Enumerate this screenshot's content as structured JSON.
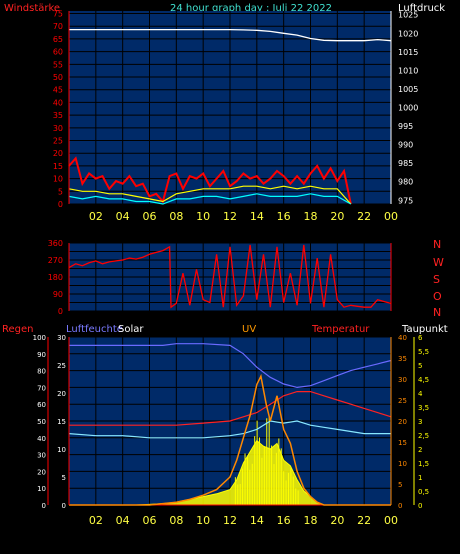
{
  "header": {
    "left_label": "Windstärke",
    "title": "24 hour graph day : Juli 22 2022",
    "right_label": "Luftdruck"
  },
  "direction_labels": [
    "N",
    "W",
    "S",
    "O",
    "N"
  ],
  "bottom_labels": {
    "regen": "Regen",
    "luftfeuchte": "Luftfeuchte",
    "solar": "Solar",
    "uv": "UV",
    "temperatur": "Temperatur",
    "taupunkt": "Taupunkt"
  },
  "colors": {
    "panel_bg": "#002a68",
    "grid": "#000000",
    "axis_red": "#ff0000",
    "axis_yellow": "#ffff00",
    "hours_yellow": "#ffff44",
    "pressure_line": "#ffffff",
    "wind_gust": "#ff0000",
    "wind_avg": "#ffff00",
    "wind_speed": "#00ffff",
    "humidity": "#6a6aff",
    "solar": "#ffff00",
    "uv": "#ff8800",
    "temperature": "#ff2222",
    "dewpoint": "#88e8ff",
    "rain": "#ff0000"
  },
  "chart_data": [
    {
      "type": "line",
      "name": "wind-pressure",
      "x_ticks": [
        "02",
        "04",
        "06",
        "08",
        "10",
        "12",
        "14",
        "16",
        "18",
        "20",
        "22",
        "00"
      ],
      "wind_ticks": [
        0,
        5,
        10,
        15,
        20,
        25,
        30,
        35,
        40,
        45,
        50,
        55,
        60,
        65,
        70,
        75
      ],
      "pressure_ticks": [
        975,
        980,
        985,
        990,
        995,
        1000,
        1005,
        1010,
        1015,
        1020,
        1025
      ],
      "wind_ylim": [
        0,
        76
      ],
      "pressure_ylim": [
        974,
        1026
      ],
      "pressure_hpa": {
        "x": [
          0,
          2,
          4,
          6,
          8,
          10,
          12,
          13,
          14,
          15,
          16,
          17,
          18,
          19,
          20,
          21,
          22,
          23,
          24
        ],
        "y": [
          1021.0,
          1021.0,
          1021.0,
          1021.0,
          1021.0,
          1021.0,
          1021.0,
          1020.9,
          1020.8,
          1020.5,
          1020.0,
          1019.5,
          1018.6,
          1018.1,
          1018.0,
          1018.0,
          1018.0,
          1018.3,
          1018.0
        ]
      },
      "wind_gust_kmh": {
        "x": [
          0,
          0.5,
          1,
          1.5,
          2,
          2.5,
          3,
          3.5,
          4,
          4.5,
          5,
          5.5,
          6,
          6.5,
          7,
          7.5,
          8,
          8.5,
          9,
          9.5,
          10,
          10.5,
          11,
          11.5,
          12,
          12.5,
          13,
          13.5,
          14,
          14.5,
          15,
          15.5,
          16,
          16.5,
          17,
          17.5,
          18,
          18.5,
          19,
          19.5,
          20,
          20.5,
          21
        ],
        "y": [
          15,
          18,
          8,
          12,
          10,
          11,
          6,
          9,
          8,
          11,
          7,
          8,
          3,
          4,
          1,
          11,
          12,
          6,
          11,
          10,
          12,
          7,
          10,
          13,
          7,
          9,
          12,
          10,
          11,
          8,
          10,
          13,
          11,
          8,
          11,
          8,
          12,
          15,
          10,
          14,
          9,
          13,
          0
        ]
      },
      "wind_avg_kmh": {
        "x": [
          0,
          1,
          2,
          3,
          4,
          5,
          6,
          7,
          8,
          9,
          10,
          11,
          12,
          13,
          14,
          15,
          16,
          17,
          18,
          19,
          20,
          21
        ],
        "y": [
          6,
          5,
          5,
          4,
          4,
          3,
          2,
          1,
          4,
          5,
          6,
          6,
          6,
          7,
          7,
          6,
          7,
          6,
          7,
          6,
          6,
          0
        ]
      },
      "wind_speed_kmh": {
        "x": [
          0,
          1,
          2,
          3,
          4,
          5,
          6,
          7,
          8,
          9,
          10,
          11,
          12,
          13,
          14,
          15,
          16,
          17,
          18,
          19,
          20,
          21
        ],
        "y": [
          3,
          2,
          3,
          2,
          2,
          1,
          1,
          0,
          2,
          2,
          3,
          3,
          2,
          3,
          4,
          3,
          3,
          3,
          4,
          3,
          3,
          0
        ]
      }
    },
    {
      "type": "line",
      "name": "wind-direction",
      "x_ticks": [
        "02",
        "04",
        "06",
        "08",
        "10",
        "12",
        "14",
        "16",
        "18",
        "20",
        "22",
        "00"
      ],
      "y_ticks": [
        0,
        90,
        180,
        270,
        360
      ],
      "y_minor_ticks": [
        45,
        135,
        225,
        315
      ],
      "ylim": [
        0,
        360
      ],
      "direction_deg": {
        "x": [
          0,
          0.5,
          1,
          1.5,
          2,
          2.5,
          3,
          3.5,
          4,
          4.5,
          5,
          5.5,
          6,
          6.5,
          7,
          7.5,
          7.6,
          8,
          8.5,
          9,
          9.5,
          10,
          10.5,
          11,
          11.5,
          12,
          12.5,
          13,
          13.5,
          14,
          14.5,
          15,
          15.5,
          16,
          16.5,
          17,
          17.5,
          18,
          18.5,
          19,
          19.5,
          20,
          20.5,
          21,
          21.5,
          22,
          22.5,
          23,
          23.5,
          24
        ],
        "y": [
          230,
          250,
          240,
          255,
          265,
          250,
          260,
          265,
          270,
          280,
          275,
          285,
          300,
          310,
          320,
          340,
          20,
          40,
          200,
          30,
          220,
          60,
          45,
          300,
          20,
          340,
          30,
          80,
          350,
          60,
          300,
          20,
          340,
          45,
          200,
          30,
          350,
          40,
          280,
          20,
          300,
          60,
          20,
          30,
          25,
          20,
          20,
          60,
          50,
          40
        ]
      }
    },
    {
      "type": "line",
      "name": "solar-uv-temperature",
      "x_ticks": [
        "02",
        "04",
        "06",
        "08",
        "10",
        "12",
        "14",
        "16",
        "18",
        "20",
        "22",
        "00"
      ],
      "regen_ticks": [
        0,
        10,
        20,
        30,
        40,
        50,
        60,
        70,
        80,
        90,
        100
      ],
      "luftfeuchte_ticks": [
        0,
        5,
        10,
        15,
        20,
        25,
        30
      ],
      "temp_ticks": [
        0,
        5,
        10,
        15,
        20,
        25,
        30,
        35,
        40
      ],
      "uv_ticks": [
        0,
        0.5,
        1,
        1.5,
        2,
        2.5,
        3,
        3.5,
        4,
        4.5,
        5,
        5.5,
        6
      ],
      "uv_tick_labels": [
        "0",
        "0,5",
        "1",
        "1,5",
        "2",
        "2,5",
        "3",
        "3,5",
        "4",
        "4,5",
        "5",
        "5,5",
        "6"
      ],
      "humidity_pct": {
        "x": [
          0,
          2,
          4,
          6,
          7,
          8,
          10,
          12,
          13,
          14,
          15,
          16,
          17,
          18,
          19,
          20,
          21,
          22,
          23,
          24
        ],
        "y": [
          95,
          95,
          95,
          95,
          95,
          96,
          96,
          95,
          90,
          82,
          76,
          72,
          70,
          71,
          74,
          77,
          80,
          82,
          84,
          86
        ]
      },
      "temperature_c": {
        "x": [
          0,
          2,
          4,
          6,
          8,
          10,
          12,
          13,
          14,
          15,
          16,
          17,
          18,
          19,
          20,
          21,
          22,
          23,
          24
        ],
        "y": [
          19,
          19,
          19,
          19,
          19,
          19.5,
          20,
          21,
          22,
          24,
          26,
          27,
          27,
          26,
          25,
          24,
          23,
          22,
          21
        ]
      },
      "dewpoint_c": {
        "x": [
          0,
          2,
          4,
          6,
          8,
          10,
          12,
          13,
          14,
          15,
          16,
          17,
          18,
          19,
          20,
          21,
          22,
          23,
          24
        ],
        "y": [
          17,
          16.5,
          16.5,
          16,
          16,
          16,
          16.5,
          17,
          18,
          20,
          19.5,
          20,
          19,
          18.5,
          18,
          17.5,
          17,
          17,
          17
        ]
      },
      "uv_index": {
        "x": [
          0,
          5,
          6,
          7,
          8,
          9,
          10,
          11,
          12,
          12.5,
          13,
          13.5,
          14,
          14.3,
          14.7,
          15,
          15.5,
          16,
          16.5,
          17,
          17.5,
          18,
          18.5,
          19,
          24
        ],
        "y": [
          0,
          0,
          0,
          0.05,
          0.1,
          0.2,
          0.35,
          0.55,
          1,
          1.6,
          2.4,
          3.2,
          4.3,
          4.6,
          3.6,
          3.0,
          3.9,
          2.7,
          2.2,
          1.2,
          0.6,
          0.3,
          0.1,
          0,
          0
        ]
      },
      "solar_wm2_scaled_uv": {
        "x": [
          0,
          5,
          6,
          7,
          8,
          9,
          10,
          11,
          12,
          12.5,
          13,
          13.5,
          14,
          14.5,
          15,
          15.5,
          16,
          16.5,
          17,
          17.5,
          18,
          18.5,
          19,
          24
        ],
        "y": [
          0,
          0,
          0.02,
          0.05,
          0.1,
          0.2,
          0.3,
          0.4,
          0.55,
          0.9,
          1.5,
          1.9,
          2.3,
          2.1,
          2.0,
          2.2,
          1.6,
          1.4,
          0.9,
          0.5,
          0.3,
          0.1,
          0,
          0
        ]
      },
      "rain_mm": {
        "x": [
          0,
          24
        ],
        "y": [
          0,
          0
        ]
      }
    }
  ]
}
